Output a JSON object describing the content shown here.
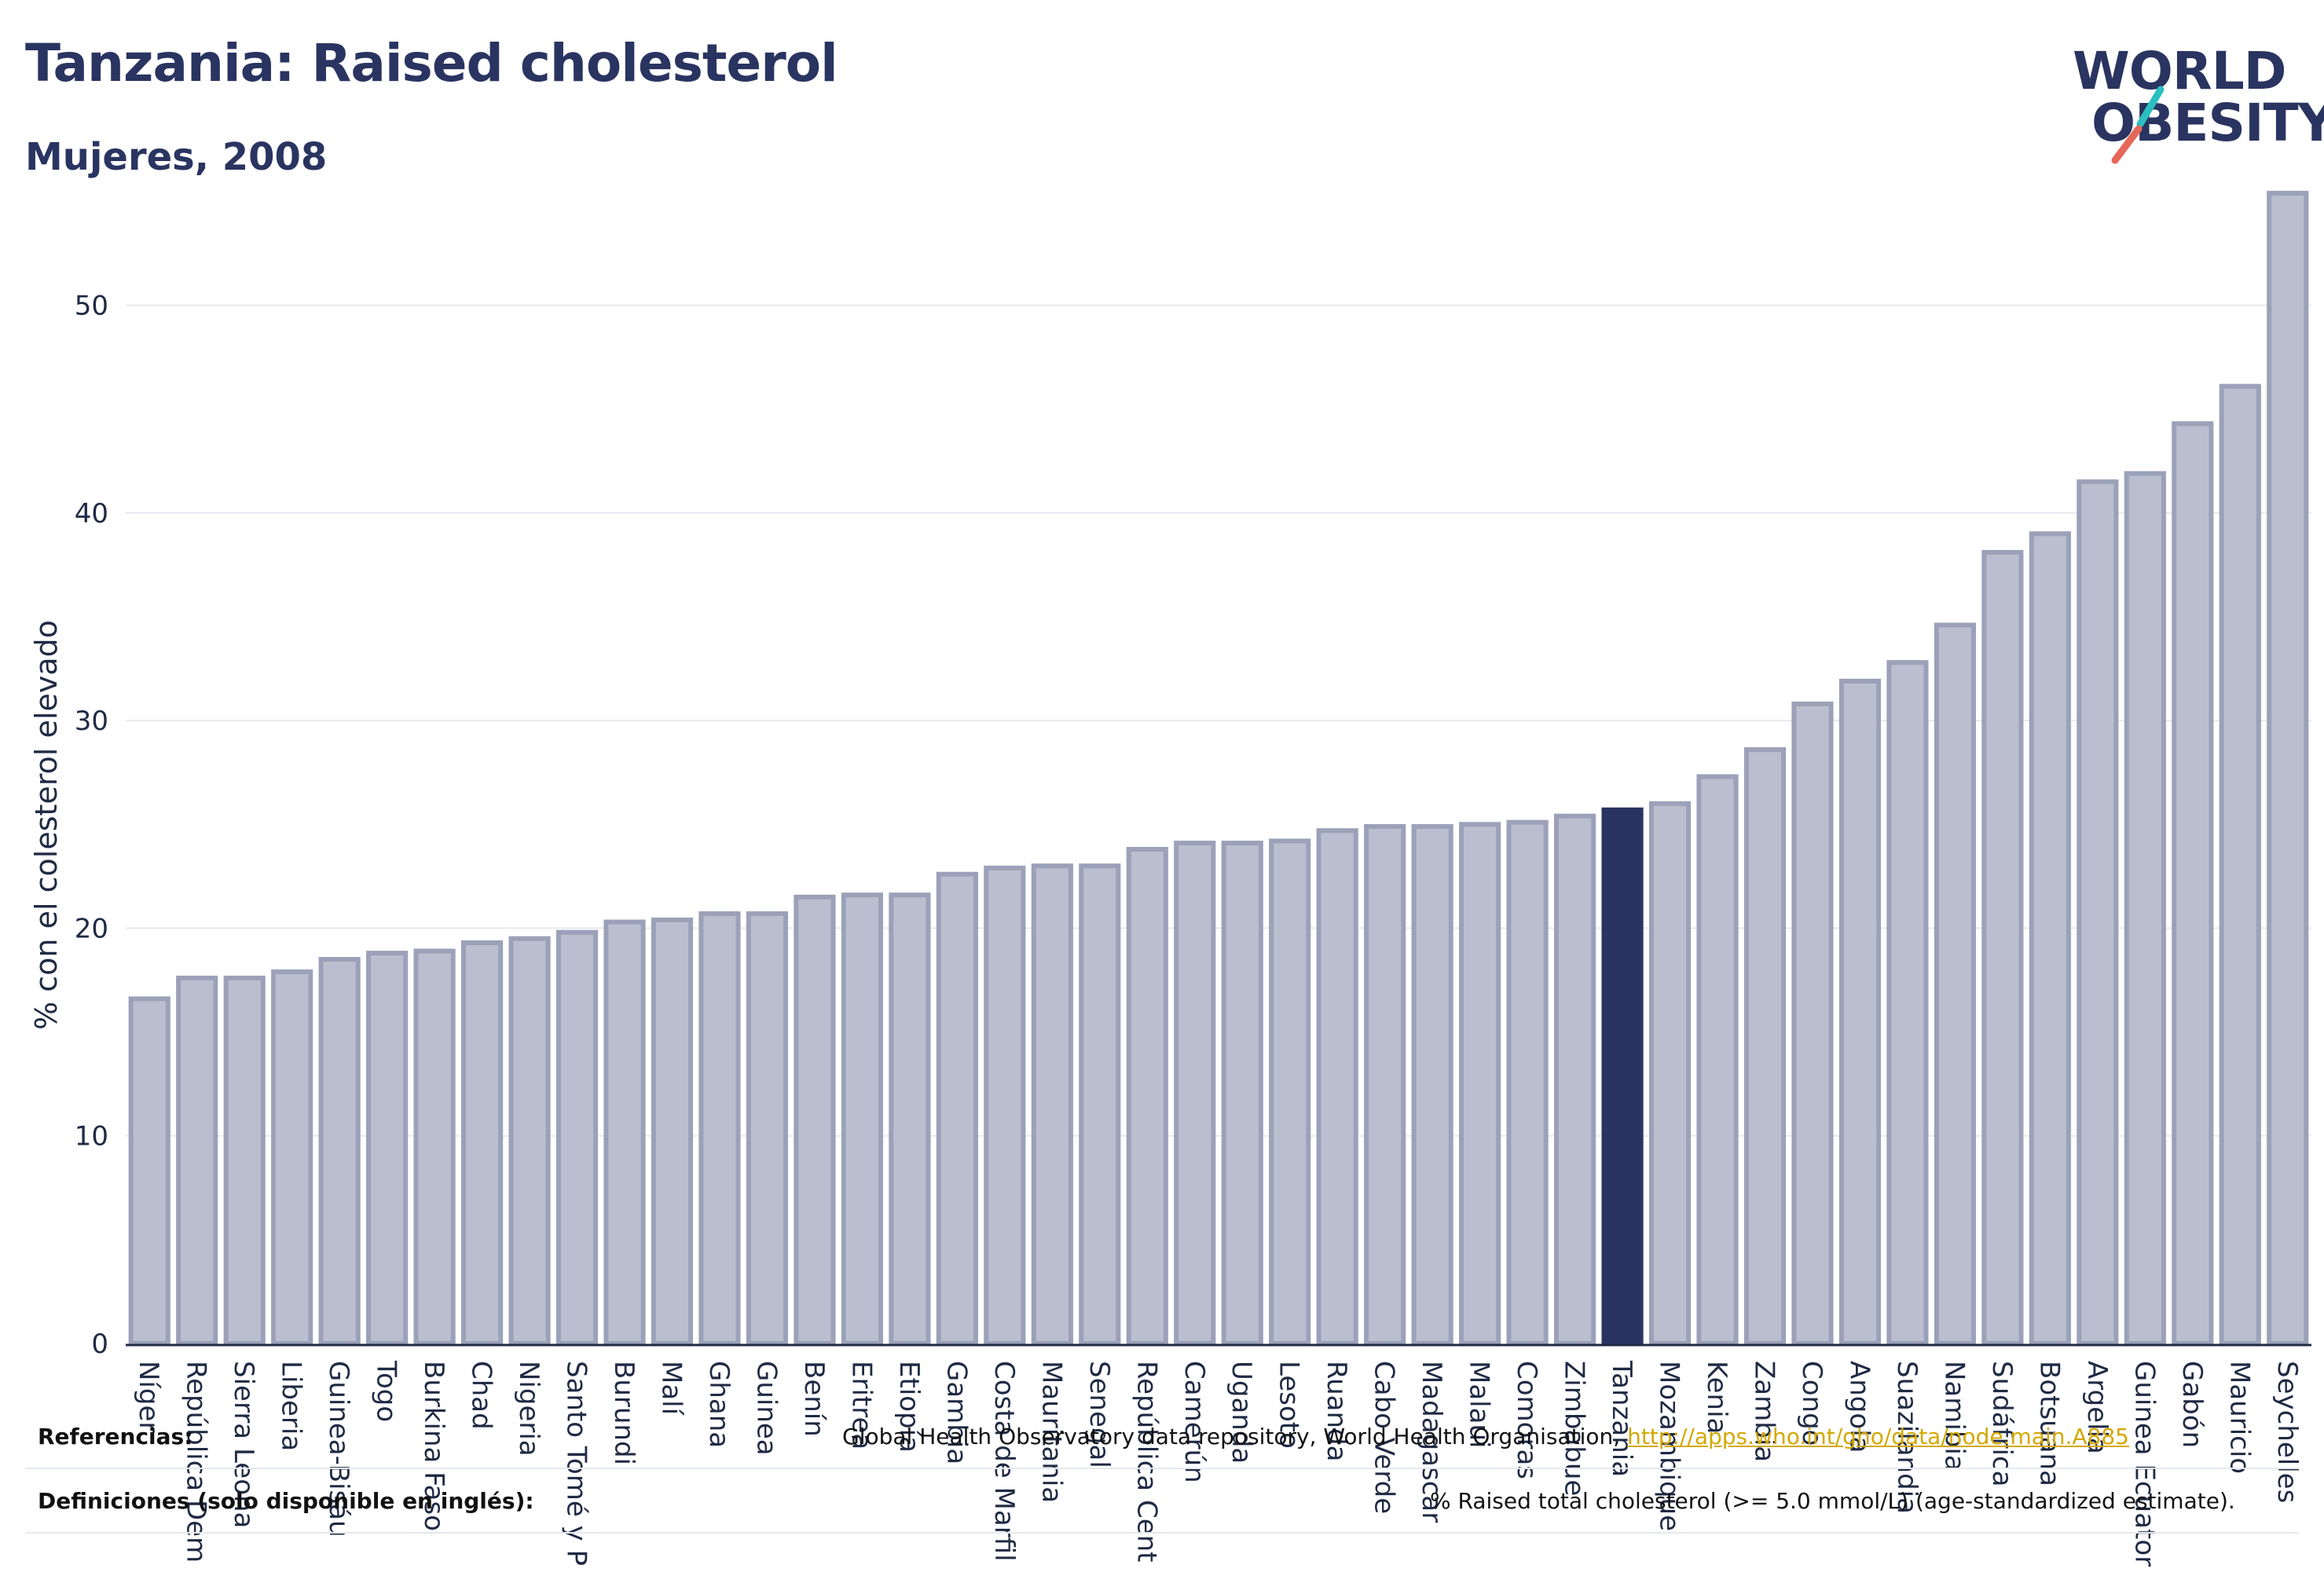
{
  "header": {
    "title": "Tanzania: Raised cholesterol",
    "subtitle": "Mujeres, 2008"
  },
  "logo": {
    "line1": "WORLD",
    "line2": "OBESITY",
    "accent_colors": [
      "#2bbfc0",
      "#e5675a"
    ]
  },
  "footer": {
    "references_label": "Referencias:",
    "references_text": "Global Health Observatory data repository, World Health Organisation,",
    "references_link": "http://apps.who.int/gho/data/node.main.A885",
    "definitions_label": "Definiciones (solo disponible en inglés):",
    "definitions_text": "% Raised total cholesterol (>= 5.0 mmol/L) (age-standardized estimate)."
  },
  "colors": {
    "bar": "#babfcf",
    "bar_edge": "#9ba1b8",
    "highlight": "#2a3461",
    "grid": "#e8e8ee",
    "axis": "#1f2a44"
  },
  "chart_data": {
    "type": "bar",
    "title": "Tanzania: Raised cholesterol",
    "subtitle": "Mujeres, 2008",
    "xlabel": "",
    "ylabel": "% con el colesterol elevado",
    "ylim": [
      0,
      56
    ],
    "yticks": [
      0,
      10,
      20,
      30,
      40,
      50
    ],
    "grid": true,
    "highlight": "Tanzania",
    "categories": [
      "Níger",
      "República Dem",
      "Sierra Leona",
      "Liberia",
      "Guinea-Bisáu",
      "Togo",
      "Burkina Faso",
      "Chad",
      "Nigeria",
      "Santo Tomé y P",
      "Burundi",
      "Malí",
      "Ghana",
      "Guinea",
      "Benín",
      "Eritrea",
      "Etiopía",
      "Gambia",
      "Costa de Marfil",
      "Mauritania",
      "Senegal",
      "República Cent",
      "Camerún",
      "Uganda",
      "Lesoto",
      "Ruanda",
      "Cabo Verde",
      "Madagascar",
      "Malaui",
      "Comoras",
      "Zimbabue",
      "Tanzania",
      "Mozambique",
      "Kenia",
      "Zambia",
      "Congo",
      "Angola",
      "Suazilandia",
      "Namibia",
      "Sudáfrica",
      "Botsuana",
      "Argelia",
      "Guinea Ecuator",
      "Gabón",
      "Mauricio",
      "Seychelles"
    ],
    "values": [
      16.6,
      17.6,
      17.6,
      17.9,
      18.5,
      18.8,
      18.9,
      19.3,
      19.5,
      19.8,
      20.3,
      20.4,
      20.7,
      20.7,
      21.5,
      21.6,
      21.6,
      22.6,
      22.9,
      23.0,
      23.0,
      23.8,
      24.1,
      24.1,
      24.2,
      24.7,
      24.9,
      24.9,
      25.0,
      25.1,
      25.4,
      25.7,
      26.0,
      27.3,
      28.6,
      30.8,
      31.9,
      32.8,
      34.6,
      38.1,
      39.0,
      41.5,
      41.9,
      44.3,
      46.1,
      55.4
    ]
  }
}
